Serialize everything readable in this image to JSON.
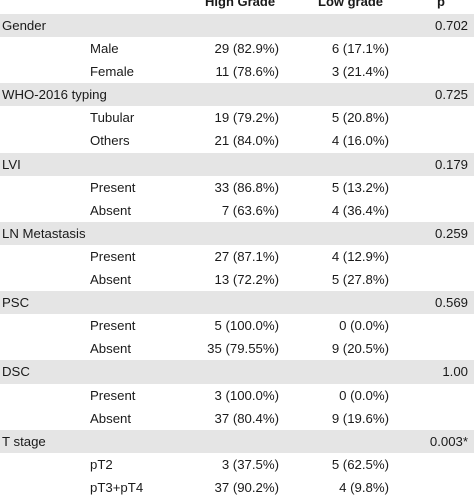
{
  "header": {
    "col_high": "High Grade",
    "col_low": "Low grade",
    "col_p": "p"
  },
  "rows": [
    {
      "category": "Gender",
      "sub": "",
      "high": "",
      "low": "",
      "p": "0.702",
      "shade": true
    },
    {
      "category": "",
      "sub": "Male",
      "high": "29 (82.9%)",
      "low": "6 (17.1%)",
      "p": "",
      "shade": false
    },
    {
      "category": "",
      "sub": "Female",
      "high": "11 (78.6%)",
      "low": "3 (21.4%)",
      "p": "",
      "shade": false
    },
    {
      "category": "WHO-2016 typing",
      "sub": "",
      "high": "",
      "low": "",
      "p": "0.725",
      "shade": true
    },
    {
      "category": "",
      "sub": "Tubular",
      "high": "19 (79.2%)",
      "low": "5 (20.8%)",
      "p": "",
      "shade": false
    },
    {
      "category": "",
      "sub": "Others",
      "high": "21 (84.0%)",
      "low": "4 (16.0%)",
      "p": "",
      "shade": false
    },
    {
      "category": "LVI",
      "sub": "",
      "high": "",
      "low": "",
      "p": "0.179",
      "shade": true
    },
    {
      "category": "",
      "sub": "Present",
      "high": "33 (86.8%)",
      "low": "5 (13.2%)",
      "p": "",
      "shade": false
    },
    {
      "category": "",
      "sub": "Absent",
      "high": "7 (63.6%)",
      "low": "4 (36.4%)",
      "p": "",
      "shade": false
    },
    {
      "category": "LN Metastasis",
      "sub": "",
      "high": "",
      "low": "",
      "p": "0.259",
      "shade": true
    },
    {
      "category": "",
      "sub": "Present",
      "high": "27 (87.1%)",
      "low": "4 (12.9%)",
      "p": "",
      "shade": false
    },
    {
      "category": "",
      "sub": "Absent",
      "high": "13 (72.2%)",
      "low": "5 (27.8%)",
      "p": "",
      "shade": false
    },
    {
      "category": "PSC",
      "sub": "",
      "high": "",
      "low": "",
      "p": "0.569",
      "shade": true
    },
    {
      "category": "",
      "sub": "Present",
      "high": "5 (100.0%)",
      "low": "0 (0.0%)",
      "p": "",
      "shade": false
    },
    {
      "category": "",
      "sub": "Absent",
      "high": "35 (79.55%)",
      "low": "9 (20.5%)",
      "p": "",
      "shade": false
    },
    {
      "category": "DSC",
      "sub": "",
      "high": "",
      "low": "",
      "p": "1.00",
      "shade": true
    },
    {
      "category": "",
      "sub": "Present",
      "high": "3 (100.0%)",
      "low": "0 (0.0%)",
      "p": "",
      "shade": false
    },
    {
      "category": "",
      "sub": "Absent",
      "high": "37 (80.4%)",
      "low": "9 (19.6%)",
      "p": "",
      "shade": false
    },
    {
      "category": "T stage",
      "sub": "",
      "high": "",
      "low": "",
      "p": "0.003*",
      "shade": true
    },
    {
      "category": "",
      "sub": "pT2",
      "high": "3 (37.5%)",
      "low": "5 (62.5%)",
      "p": "",
      "shade": false
    },
    {
      "category": "",
      "sub": "pT3+pT4",
      "high": "37 (90.2%)",
      "low": "4 (9.8%)",
      "p": "",
      "shade": false
    }
  ]
}
